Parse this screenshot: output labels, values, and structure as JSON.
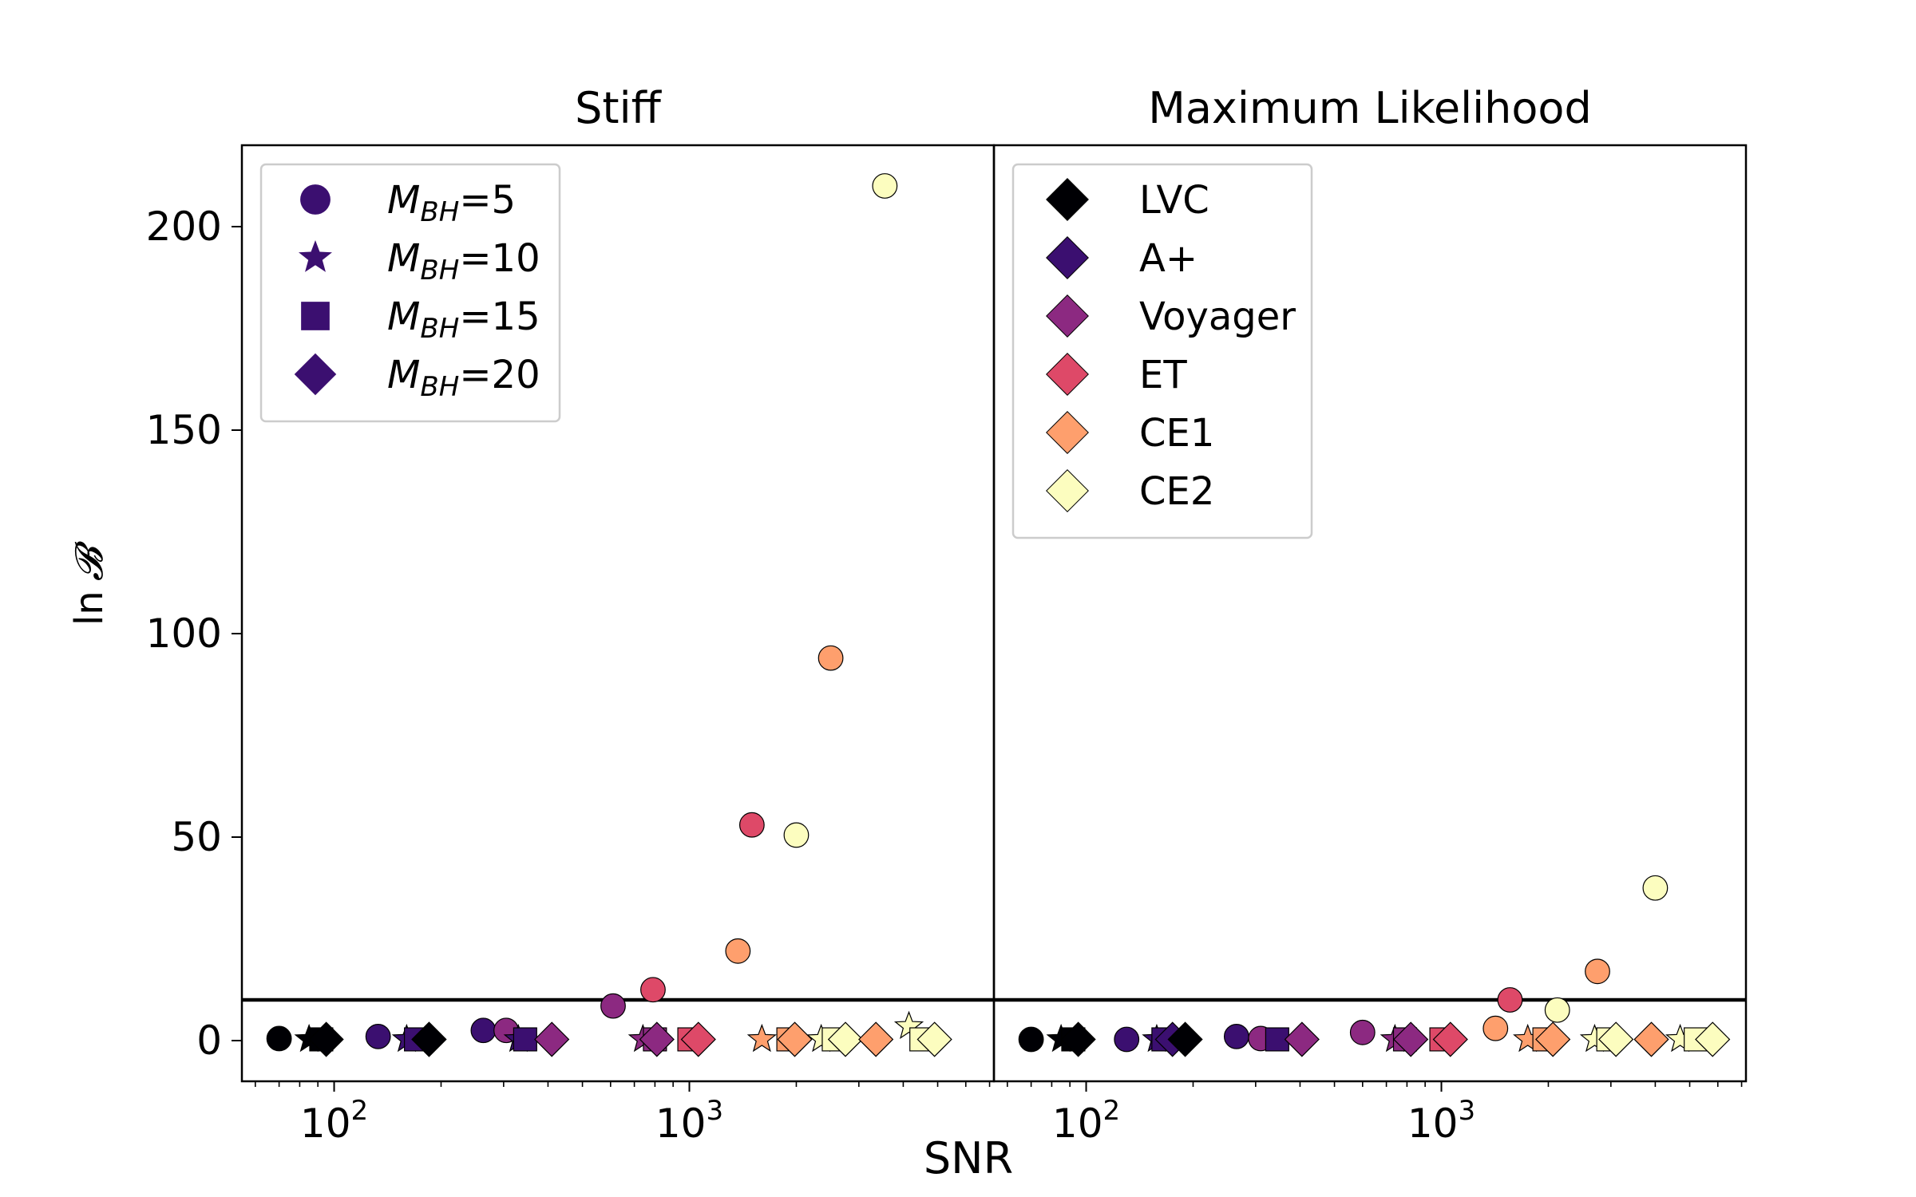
{
  "figure": {
    "xlabel": "SNR",
    "ylabel_prefix": "ln",
    "ylabel_symbol": "𝓑"
  },
  "threshold": 10,
  "chart_data": [
    {
      "type": "scatter",
      "title": "Stiff",
      "xscale": "log",
      "xlim": [
        55,
        7200
      ],
      "ylim": [
        -10,
        220
      ],
      "yticks": [
        0,
        50,
        100,
        150,
        200
      ],
      "xticks": [
        {
          "value": 100,
          "base": "10",
          "exp": "2"
        },
        {
          "value": 1000,
          "base": "10",
          "exp": "3"
        }
      ],
      "legend": {
        "placement": "upper-left",
        "title": "",
        "entries": [
          {
            "marker": "circle",
            "label_sym": "M",
            "label_sub": "BH",
            "label_val": "=5"
          },
          {
            "marker": "star",
            "label_sym": "M",
            "label_sub": "BH",
            "label_val": "=10"
          },
          {
            "marker": "square",
            "label_sym": "M",
            "label_sub": "BH",
            "label_val": "=15"
          },
          {
            "marker": "diamond",
            "label_sym": "M",
            "label_sub": "BH",
            "label_val": "=20"
          }
        ]
      },
      "points": [
        {
          "detector": "LVC",
          "marker": "circle",
          "x": 70,
          "y": 0.5
        },
        {
          "detector": "LVC",
          "marker": "star",
          "x": 85,
          "y": 0.3
        },
        {
          "detector": "LVC",
          "marker": "square",
          "x": 92,
          "y": 0.3
        },
        {
          "detector": "LVC",
          "marker": "diamond",
          "x": 95,
          "y": 0.3
        },
        {
          "detector": "A+",
          "marker": "circle",
          "x": 133,
          "y": 1.0
        },
        {
          "detector": "A+",
          "marker": "star",
          "x": 160,
          "y": 0.3
        },
        {
          "detector": "A+",
          "marker": "square",
          "x": 170,
          "y": 0.3
        },
        {
          "detector": "A+",
          "marker": "diamond",
          "x": 185,
          "y": 0.3
        },
        {
          "detector": "LVC",
          "marker": "diamond",
          "x": 185,
          "y": 0.3
        },
        {
          "detector": "A+",
          "marker": "circle",
          "x": 263,
          "y": 2.5
        },
        {
          "detector": "Voyager",
          "marker": "circle",
          "x": 305,
          "y": 2.5
        },
        {
          "detector": "A+",
          "marker": "star",
          "x": 330,
          "y": 0.3
        },
        {
          "detector": "A+",
          "marker": "square",
          "x": 345,
          "y": 0.3
        },
        {
          "detector": "Voyager",
          "marker": "diamond",
          "x": 410,
          "y": 0.3
        },
        {
          "detector": "Voyager",
          "marker": "circle",
          "x": 610,
          "y": 8.5
        },
        {
          "detector": "Voyager",
          "marker": "star",
          "x": 740,
          "y": 0.3
        },
        {
          "detector": "ET",
          "marker": "circle",
          "x": 790,
          "y": 12.5
        },
        {
          "detector": "Voyager",
          "marker": "square",
          "x": 800,
          "y": 0.3
        },
        {
          "detector": "Voyager",
          "marker": "diamond",
          "x": 810,
          "y": 0.3
        },
        {
          "detector": "ET",
          "marker": "square",
          "x": 1000,
          "y": 0.3
        },
        {
          "detector": "ET",
          "marker": "diamond",
          "x": 1060,
          "y": 0.3
        },
        {
          "detector": "CE1",
          "marker": "circle",
          "x": 1370,
          "y": 22
        },
        {
          "detector": "ET",
          "marker": "circle",
          "x": 1500,
          "y": 53
        },
        {
          "detector": "CE1",
          "marker": "star",
          "x": 1600,
          "y": 0.3
        },
        {
          "detector": "CE1",
          "marker": "square",
          "x": 1900,
          "y": 0.3
        },
        {
          "detector": "CE2",
          "marker": "circle",
          "x": 2000,
          "y": 50.5
        },
        {
          "detector": "CE1",
          "marker": "diamond",
          "x": 1980,
          "y": 0.3
        },
        {
          "detector": "CE2",
          "marker": "star",
          "x": 2350,
          "y": 0.3
        },
        {
          "detector": "CE1",
          "marker": "circle",
          "x": 2500,
          "y": 94
        },
        {
          "detector": "CE2",
          "marker": "square",
          "x": 2550,
          "y": 0.3
        },
        {
          "detector": "CE2",
          "marker": "diamond",
          "x": 2750,
          "y": 0.3
        },
        {
          "detector": "CE1",
          "marker": "diamond",
          "x": 3350,
          "y": 0.3
        },
        {
          "detector": "CE2",
          "marker": "circle",
          "x": 3550,
          "y": 210
        },
        {
          "detector": "CE2",
          "marker": "star",
          "x": 4150,
          "y": 3.5
        },
        {
          "detector": "CE2",
          "marker": "square",
          "x": 4500,
          "y": 0.3
        },
        {
          "detector": "CE2",
          "marker": "diamond",
          "x": 4900,
          "y": 0.3
        }
      ]
    },
    {
      "type": "scatter",
      "title": "Maximum Likelihood",
      "xscale": "log",
      "xlim": [
        55,
        7200
      ],
      "ylim": [
        -10,
        220
      ],
      "yticks": [
        0,
        50,
        100,
        150,
        200
      ],
      "xticks": [
        {
          "value": 100,
          "base": "10",
          "exp": "2"
        },
        {
          "value": 1000,
          "base": "10",
          "exp": "3"
        }
      ],
      "legend": {
        "placement": "upper-left",
        "title": "",
        "entries": [
          {
            "marker": "diamond",
            "detector": "LVC",
            "label": "LVC"
          },
          {
            "marker": "diamond",
            "detector": "A+",
            "label": "A+"
          },
          {
            "marker": "diamond",
            "detector": "Voyager",
            "label": "Voyager"
          },
          {
            "marker": "diamond",
            "detector": "ET",
            "label": "ET"
          },
          {
            "marker": "diamond",
            "detector": "CE1",
            "label": "CE1"
          },
          {
            "marker": "diamond",
            "detector": "CE2",
            "label": "CE2"
          }
        ]
      },
      "points": [
        {
          "detector": "LVC",
          "marker": "circle",
          "x": 70,
          "y": 0.3
        },
        {
          "detector": "LVC",
          "marker": "star",
          "x": 85,
          "y": 0.3
        },
        {
          "detector": "LVC",
          "marker": "square",
          "x": 92,
          "y": 0.3
        },
        {
          "detector": "LVC",
          "marker": "diamond",
          "x": 95,
          "y": 0.3
        },
        {
          "detector": "A+",
          "marker": "circle",
          "x": 130,
          "y": 0.3
        },
        {
          "detector": "A+",
          "marker": "star",
          "x": 158,
          "y": 0.3
        },
        {
          "detector": "A+",
          "marker": "square",
          "x": 165,
          "y": 0.3
        },
        {
          "detector": "A+",
          "marker": "diamond",
          "x": 175,
          "y": 0.3
        },
        {
          "detector": "LVC",
          "marker": "diamond",
          "x": 190,
          "y": 0.3
        },
        {
          "detector": "A+",
          "marker": "circle",
          "x": 265,
          "y": 1.0
        },
        {
          "detector": "Voyager",
          "marker": "circle",
          "x": 310,
          "y": 0.5
        },
        {
          "detector": "A+",
          "marker": "square",
          "x": 345,
          "y": 0.3
        },
        {
          "detector": "Voyager",
          "marker": "diamond",
          "x": 405,
          "y": 0.3
        },
        {
          "detector": "Voyager",
          "marker": "circle",
          "x": 600,
          "y": 2.0
        },
        {
          "detector": "Voyager",
          "marker": "star",
          "x": 740,
          "y": 0.3
        },
        {
          "detector": "Voyager",
          "marker": "square",
          "x": 790,
          "y": 0.3
        },
        {
          "detector": "Voyager",
          "marker": "diamond",
          "x": 820,
          "y": 0.3
        },
        {
          "detector": "ET",
          "marker": "square",
          "x": 1000,
          "y": 0.3
        },
        {
          "detector": "ET",
          "marker": "diamond",
          "x": 1060,
          "y": 0.3
        },
        {
          "detector": "CE1",
          "marker": "circle",
          "x": 1420,
          "y": 3.0
        },
        {
          "detector": "ET",
          "marker": "circle",
          "x": 1560,
          "y": 10
        },
        {
          "detector": "CE1",
          "marker": "star",
          "x": 1750,
          "y": 0.3
        },
        {
          "detector": "CE1",
          "marker": "square",
          "x": 1950,
          "y": 0.3
        },
        {
          "detector": "CE2",
          "marker": "circle",
          "x": 2120,
          "y": 7.5
        },
        {
          "detector": "CE1",
          "marker": "diamond",
          "x": 2060,
          "y": 0.3
        },
        {
          "detector": "CE2",
          "marker": "star",
          "x": 2700,
          "y": 0.3
        },
        {
          "detector": "CE1",
          "marker": "circle",
          "x": 2750,
          "y": 17
        },
        {
          "detector": "CE2",
          "marker": "square",
          "x": 2950,
          "y": 0.3
        },
        {
          "detector": "CE2",
          "marker": "diamond",
          "x": 3100,
          "y": 0.3
        },
        {
          "detector": "CE1",
          "marker": "diamond",
          "x": 3900,
          "y": 0.3
        },
        {
          "detector": "CE2",
          "marker": "circle",
          "x": 4000,
          "y": 37.5
        },
        {
          "detector": "CE2",
          "marker": "star",
          "x": 4700,
          "y": 0.3
        },
        {
          "detector": "CE2",
          "marker": "square",
          "x": 5200,
          "y": 0.3
        },
        {
          "detector": "CE2",
          "marker": "diamond",
          "x": 5800,
          "y": 0.3
        }
      ]
    }
  ],
  "colors": {
    "LVC": "#000004",
    "A+": "#3b0f70",
    "Voyager": "#8c2981",
    "ET": "#de4968",
    "CE1": "#fe9f6d",
    "CE2": "#fcfdbf",
    "legend_m_marker": "#3b0f70",
    "axis": "#000000",
    "legend_border": "#cccccc"
  }
}
